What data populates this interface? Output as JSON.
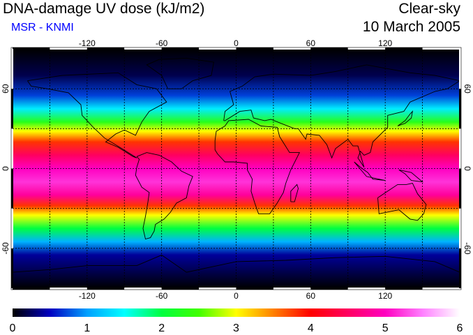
{
  "header": {
    "title": "DNA-damage UV dose (kJ/m2)",
    "subtitle": "MSR - KNMI",
    "mode": "Clear-sky",
    "date": "10 March 2005"
  },
  "colors": {
    "subtitle": "#0000ff",
    "ocean_dark": "#000010",
    "coast": "#000000",
    "grid": "#000000"
  },
  "map": {
    "projection": "equirectangular",
    "lon_range": [
      -180,
      180
    ],
    "lat_range": [
      -90,
      90
    ],
    "grid_lon_step": 30,
    "grid_lat_step": 30,
    "lon_tick_labels": [
      "-120",
      "-60",
      "0",
      "60",
      "120"
    ],
    "lat_tick_labels": [
      "60",
      "0",
      "-60"
    ],
    "value_profile_by_lat": [
      {
        "lat": 90,
        "value": 0.0
      },
      {
        "lat": 70,
        "value": 0.2
      },
      {
        "lat": 55,
        "value": 0.7
      },
      {
        "lat": 45,
        "value": 1.4
      },
      {
        "lat": 35,
        "value": 2.3
      },
      {
        "lat": 28,
        "value": 3.0
      },
      {
        "lat": 20,
        "value": 3.8
      },
      {
        "lat": 10,
        "value": 4.5
      },
      {
        "lat": 0,
        "value": 5.0
      },
      {
        "lat": -10,
        "value": 5.2
      },
      {
        "lat": -20,
        "value": 4.8
      },
      {
        "lat": -28,
        "value": 3.8
      },
      {
        "lat": -35,
        "value": 3.0
      },
      {
        "lat": -45,
        "value": 2.0
      },
      {
        "lat": -55,
        "value": 1.1
      },
      {
        "lat": -65,
        "value": 0.4
      },
      {
        "lat": -90,
        "value": 0.0
      }
    ]
  },
  "colorbar": {
    "min": 0,
    "max": 6,
    "tick_labels": [
      "0",
      "1",
      "2",
      "3",
      "4",
      "5",
      "6"
    ],
    "stops": [
      "#000000",
      "#0000c0",
      "#00a0ff",
      "#00ffff",
      "#00ff40",
      "#40ff00",
      "#ffff00",
      "#ff8000",
      "#ff0000",
      "#ff0060",
      "#ff00c0",
      "#ff80ff",
      "#ffffff"
    ]
  }
}
